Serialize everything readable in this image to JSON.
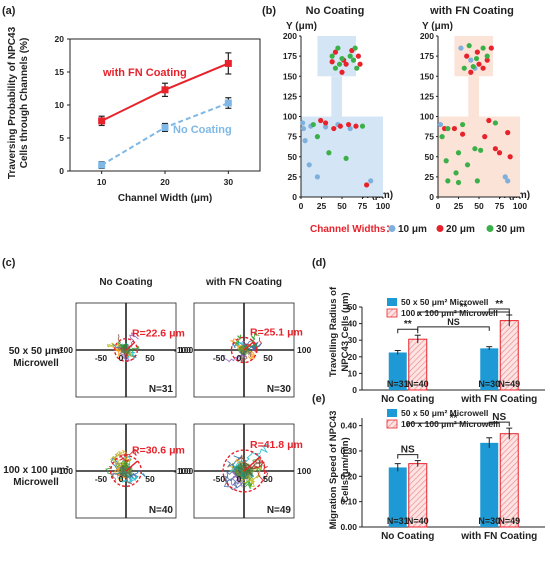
{
  "panel_letters": [
    "(a)",
    "(b)",
    "(c)",
    "(d)",
    "(e)"
  ],
  "chart_data": [
    {
      "panel": "(a)",
      "type": "line",
      "xlabel": "Channel Width (μm)",
      "ylabel_lines": [
        "Traversing Probability of NPC43",
        "Cells through Channels (%)"
      ],
      "x": [
        10,
        20,
        30
      ],
      "xticks": [
        "10",
        "20",
        "30"
      ],
      "yticks": [
        "0",
        "5",
        "10",
        "15",
        "20"
      ],
      "ylim": [
        0,
        20
      ],
      "series": [
        {
          "name": "with FN Coating",
          "values": [
            7.6,
            12.3,
            16.3
          ],
          "errors": [
            0.7,
            1.0,
            1.6
          ],
          "color": "#e8222b",
          "style": "solid"
        },
        {
          "name": "No Coating",
          "values": [
            0.9,
            6.6,
            10.3
          ],
          "errors": [
            0.5,
            0.6,
            0.8
          ],
          "color": "#7fb8e6",
          "style": "dashed"
        }
      ]
    },
    {
      "panel": "(b)",
      "type": "scatter",
      "subplots": [
        "No Coating",
        "with FN Coating"
      ],
      "xlabel": "X (μm)",
      "ylabel": "Y (μm)",
      "xticks": [
        "0",
        "25",
        "50",
        "75",
        "100"
      ],
      "yticks": [
        "0",
        "25",
        "50",
        "75",
        "100",
        "125",
        "150",
        "175",
        "200"
      ],
      "xlim": [
        0,
        100
      ],
      "ylim": [
        0,
        200
      ],
      "legend_title": "Channel Widths：",
      "legend": [
        {
          "label": "10 μm",
          "color": "#7fb0dc"
        },
        {
          "label": "20 μm",
          "color": "#e8222b"
        },
        {
          "label": "30 μm",
          "color": "#3cb048"
        }
      ],
      "background_colors": {
        "No Coating": "#d4e6f6",
        "with FN Coating": "#fbe3d8"
      },
      "points_no_coating": {
        "10 μm": [
          [
            3,
            85
          ],
          [
            12,
            88
          ],
          [
            20,
            25
          ],
          [
            5,
            70
          ],
          [
            45,
            90
          ],
          [
            30,
            87
          ],
          [
            60,
            85
          ],
          [
            85,
            20
          ],
          [
            2,
            92
          ],
          [
            10,
            40
          ]
        ],
        "20 μm": [
          [
            24,
            95
          ],
          [
            48,
            88
          ],
          [
            52,
            170
          ],
          [
            42,
            180
          ],
          [
            70,
            175
          ],
          [
            80,
            15
          ],
          [
            67,
            88
          ],
          [
            55,
            165
          ],
          [
            38,
            168
          ],
          [
            62,
            182
          ],
          [
            50,
            155
          ],
          [
            72,
            165
          ],
          [
            58,
            90
          ],
          [
            30,
            92
          ],
          [
            40,
            85
          ]
        ],
        "30 μm": [
          [
            38,
            175
          ],
          [
            64,
            170
          ],
          [
            47,
            165
          ],
          [
            66,
            185
          ],
          [
            34,
            55
          ],
          [
            55,
            48
          ],
          [
            60,
            175
          ],
          [
            45,
            185
          ],
          [
            75,
            88
          ],
          [
            50,
            172
          ],
          [
            42,
            160
          ],
          [
            68,
            160
          ],
          [
            15,
            90
          ],
          [
            20,
            75
          ]
        ]
      },
      "points_fn": {
        "10 μm": [
          [
            40,
            170
          ],
          [
            45,
            160
          ],
          [
            3,
            90
          ],
          [
            82,
            25
          ],
          [
            85,
            20
          ],
          [
            28,
            185
          ]
        ],
        "20 μm": [
          [
            8,
            85
          ],
          [
            50,
            165
          ],
          [
            35,
            175
          ],
          [
            60,
            170
          ],
          [
            65,
            185
          ],
          [
            48,
            180
          ],
          [
            20,
            85
          ],
          [
            55,
            160
          ],
          [
            75,
            55
          ],
          [
            85,
            80
          ],
          [
            40,
            155
          ],
          [
            70,
            60
          ],
          [
            62,
            95
          ],
          [
            30,
            78
          ],
          [
            88,
            50
          ],
          [
            57,
            75
          ]
        ],
        "30 μm": [
          [
            5,
            75
          ],
          [
            12,
            20
          ],
          [
            10,
            45
          ],
          [
            38,
            188
          ],
          [
            47,
            172
          ],
          [
            60,
            175
          ],
          [
            55,
            185
          ],
          [
            30,
            90
          ],
          [
            25,
            55
          ],
          [
            22,
            30
          ],
          [
            45,
            60
          ],
          [
            48,
            20
          ],
          [
            70,
            92
          ],
          [
            12,
            85
          ],
          [
            36,
            40
          ],
          [
            52,
            58
          ],
          [
            32,
            160
          ],
          [
            43,
            162
          ],
          [
            25,
            18
          ]
        ]
      }
    },
    {
      "panel": "(c)",
      "type": "scatter",
      "columns": [
        "No Coating",
        "with FN Coating"
      ],
      "rows": [
        [
          "50 x 50 μm²",
          "Microwell"
        ],
        [
          "100 x 100 μm²",
          "Microwell"
        ]
      ],
      "tick_labels": {
        "left": "-100",
        "mid_neg": "-50",
        "origin": "0",
        "mid_pos": "50",
        "right": "100"
      },
      "cells": [
        {
          "radius_label": "R=22.6 μm",
          "n_label": "N=31",
          "radius": 22.6
        },
        {
          "radius_label": "R=25.1 μm",
          "n_label": "N=30",
          "radius": 25.1
        },
        {
          "radius_label": "R=30.6 μm",
          "n_label": "N=40",
          "radius": 30.6
        },
        {
          "radius_label": "R=41.8 μm",
          "n_label": "N=49",
          "radius": 41.8
        }
      ]
    },
    {
      "panel": "(d)",
      "type": "bar",
      "ylabel_lines": [
        "Travelling Radius of",
        "NPC43 Cells (μm)"
      ],
      "categories": [
        "No Coating",
        "with FN Coating"
      ],
      "yticks": [
        "0",
        "10",
        "20",
        "30",
        "40",
        "50"
      ],
      "ylim": [
        0,
        50
      ],
      "series": [
        {
          "name": "50 x 50 μm² Microwell",
          "values": [
            22.6,
            25.1
          ],
          "errors": [
            1.2,
            1.0
          ],
          "color": "#1d9ad6",
          "n": [
            "N=31",
            "N=30"
          ]
        },
        {
          "name": "100 x 100 μm² Microwell",
          "values": [
            30.6,
            41.8
          ],
          "errors": [
            2.4,
            3.4
          ],
          "color": "#f6c9c9",
          "n": [
            "N=40",
            "N=49"
          ]
        }
      ],
      "sig_within": [
        "**",
        "**"
      ],
      "sig_ns": "NS",
      "sig_across": "**"
    },
    {
      "panel": "(e)",
      "type": "bar",
      "ylabel_lines": [
        "Migration Speed of NPC43",
        "Cells (μm/min)"
      ],
      "categories": [
        "No Coating",
        "with FN Coating"
      ],
      "yticks": [
        "0.00",
        "0.10",
        "0.20",
        "0.30",
        "0.40"
      ],
      "ylim": [
        0,
        0.43
      ],
      "ytick_values": [
        0,
        0.1,
        0.2,
        0.3,
        0.4
      ],
      "series": [
        {
          "name": "50 x 50 μm² Microwell",
          "values": [
            0.235,
            0.332
          ],
          "errors": [
            0.015,
            0.02
          ],
          "color": "#1d9ad6",
          "n": [
            "N=31",
            "N=30"
          ]
        },
        {
          "name": "100 x 100 μm² Microwell",
          "values": [
            0.25,
            0.368
          ],
          "errors": [
            0.012,
            0.022
          ],
          "color": "#f6c9c9",
          "n": [
            "N=40",
            "N=49"
          ]
        }
      ],
      "sig_within": [
        "NS",
        "NS"
      ],
      "sig_across": "**"
    }
  ]
}
